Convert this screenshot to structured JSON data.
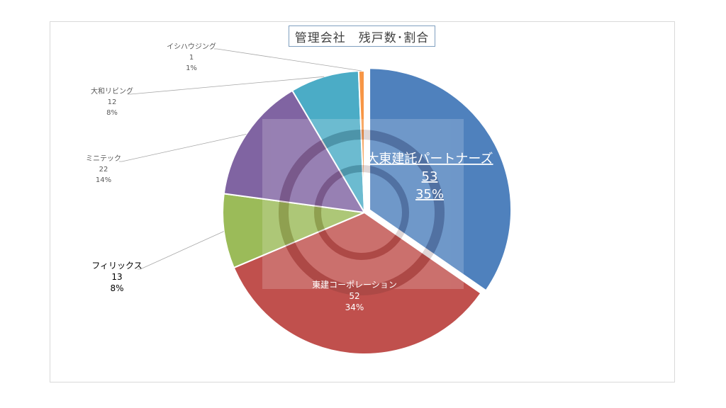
{
  "chart_data": {
    "type": "pie",
    "title": "管理会社　残戸数･割合",
    "slices": [
      {
        "name": "大東建託パートナーズ",
        "value": 53,
        "percent": "35%",
        "color": "#4f81bd"
      },
      {
        "name": "東建コーポレーション",
        "value": 52,
        "percent": "34%",
        "color": "#c0504d"
      },
      {
        "name": "フィリックス",
        "value": 13,
        "percent": "8%",
        "color": "#9bbb59"
      },
      {
        "name": "ミニテック",
        "value": 22,
        "percent": "14%",
        "color": "#8064a2"
      },
      {
        "name": "大和リビング",
        "value": 12,
        "percent": "8%",
        "color": "#4bacc6"
      },
      {
        "name": "イシハウジング",
        "value": 1,
        "percent": "1%",
        "color": "#f79646"
      }
    ],
    "exploded_slice": "大東建託パートナーズ",
    "legend": "none"
  }
}
